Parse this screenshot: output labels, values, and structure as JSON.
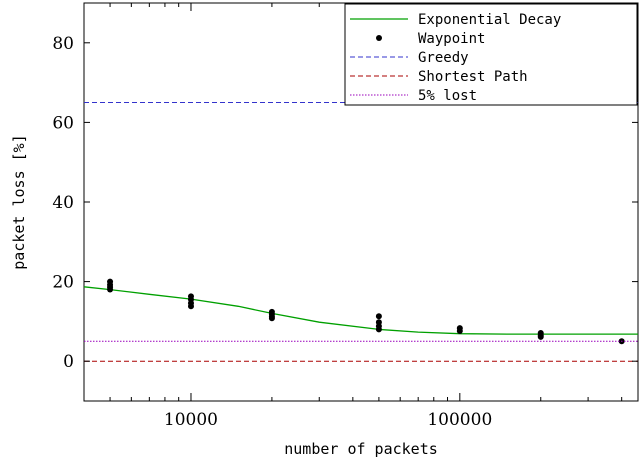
{
  "chart_data": {
    "type": "scatter",
    "xscale": "log",
    "xlim": [
      4000,
      460000
    ],
    "ylim": [
      -10,
      90
    ],
    "xlabel": "number of packets",
    "ylabel": "packet loss [%]",
    "xticks": [
      10000,
      100000
    ],
    "xtick_labels": [
      "10000",
      "100000"
    ],
    "yticks": [
      0,
      20,
      40,
      60,
      80
    ],
    "ytick_labels": [
      "0",
      "20",
      "40",
      "60",
      "80"
    ],
    "grid": false,
    "legend_position": "top-right",
    "series": [
      {
        "name": "Exponential Decay",
        "kind": "line",
        "style": "solid",
        "color": "#00a000",
        "points": [
          [
            4000,
            18.7
          ],
          [
            5000,
            18.0
          ],
          [
            7000,
            16.8
          ],
          [
            10000,
            15.6
          ],
          [
            15000,
            13.8
          ],
          [
            20000,
            12.0
          ],
          [
            30000,
            9.8
          ],
          [
            50000,
            8.0
          ],
          [
            70000,
            7.3
          ],
          [
            100000,
            6.9
          ],
          [
            150000,
            6.8
          ],
          [
            200000,
            6.8
          ],
          [
            300000,
            6.8
          ],
          [
            460000,
            6.8
          ]
        ]
      },
      {
        "name": "Waypoint",
        "kind": "scatter",
        "color": "#000000",
        "points": [
          [
            5000,
            20.0
          ],
          [
            5000,
            19.2
          ],
          [
            5000,
            18.6
          ],
          [
            5000,
            18.0
          ],
          [
            10000,
            16.3
          ],
          [
            10000,
            15.5
          ],
          [
            10000,
            14.6
          ],
          [
            10000,
            13.8
          ],
          [
            20000,
            12.4
          ],
          [
            20000,
            11.8
          ],
          [
            20000,
            11.2
          ],
          [
            20000,
            10.8
          ],
          [
            50000,
            11.3
          ],
          [
            50000,
            9.8
          ],
          [
            50000,
            8.8
          ],
          [
            50000,
            8.0
          ],
          [
            100000,
            8.3
          ],
          [
            100000,
            7.6
          ],
          [
            200000,
            7.1
          ],
          [
            200000,
            6.5
          ],
          [
            200000,
            6.1
          ],
          [
            400000,
            5.0
          ]
        ]
      },
      {
        "name": "Greedy",
        "kind": "hline",
        "style": "dashed",
        "color": "#3333cc",
        "value": 65
      },
      {
        "name": "Shortest Path",
        "kind": "hline",
        "style": "dashed",
        "color": "#aa0000",
        "value": 0
      },
      {
        "name": "5% lost",
        "kind": "hline",
        "style": "dotted",
        "color": "#9900bb",
        "value": 5
      }
    ]
  }
}
